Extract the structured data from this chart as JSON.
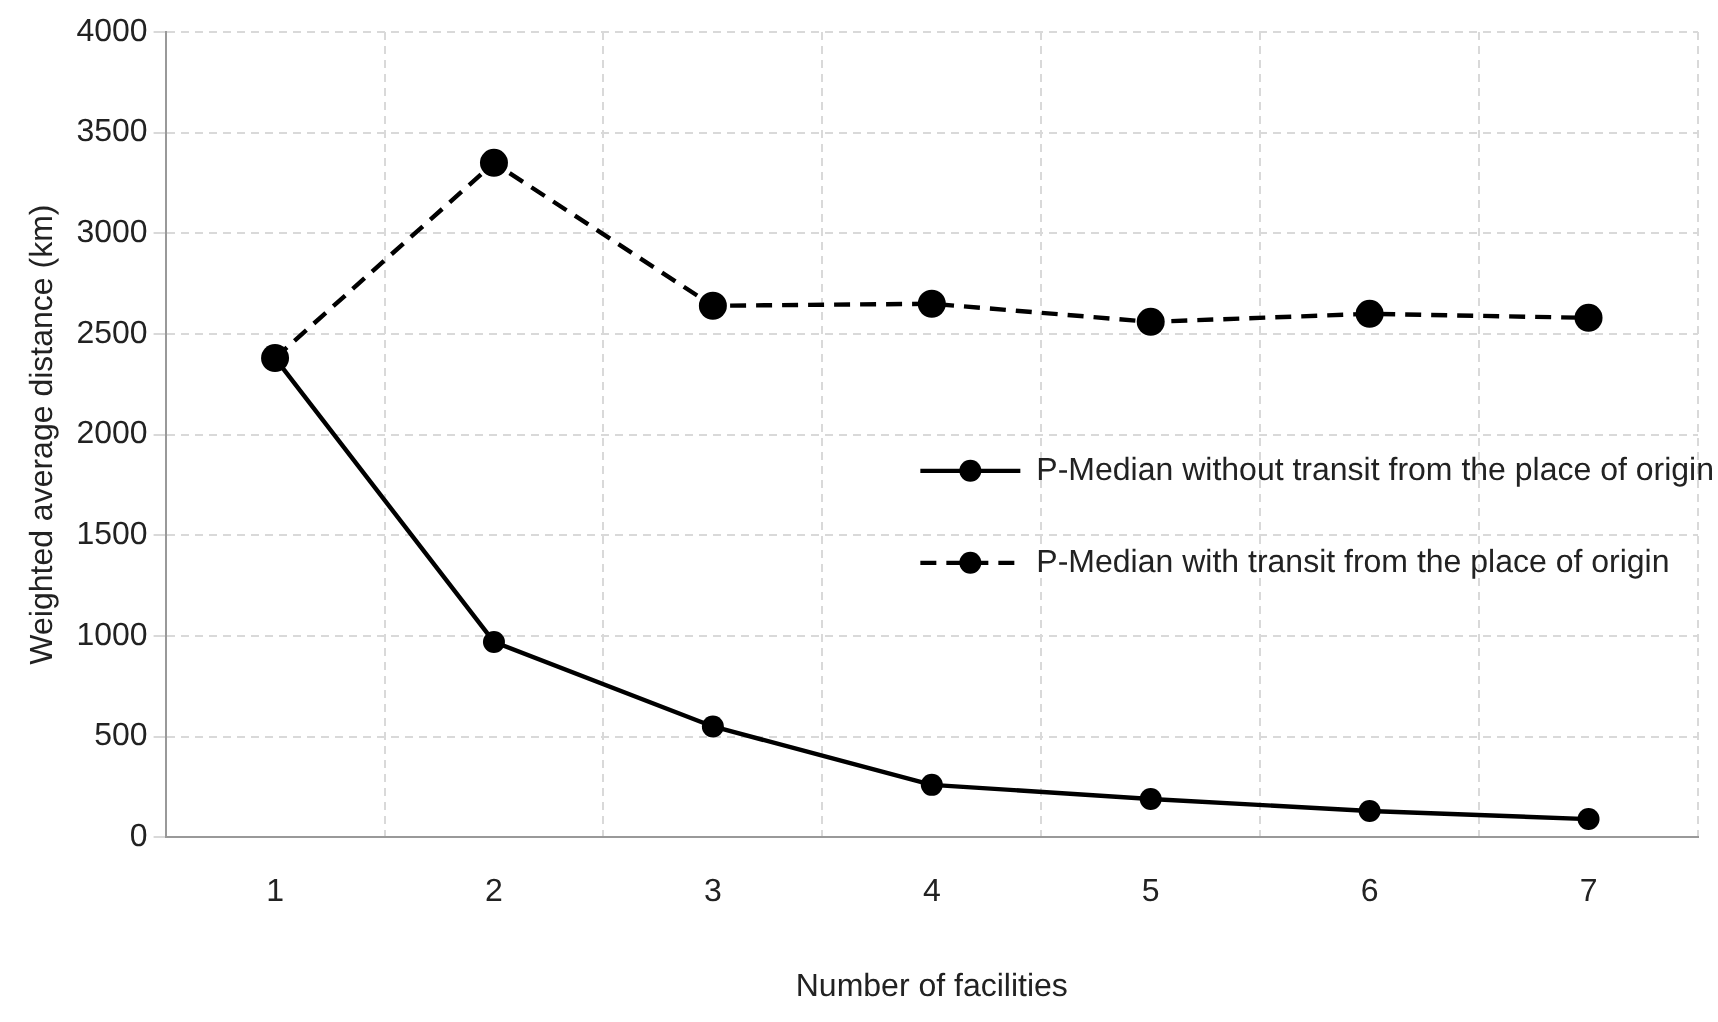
{
  "chart_data": {
    "type": "line",
    "xlabel": "Number of facilities",
    "ylabel": "Weighted average distance (km)",
    "categories": [
      "1",
      "2",
      "3",
      "4",
      "5",
      "6",
      "7"
    ],
    "series": [
      {
        "name": "P-Median without transit from the place of origin",
        "color": "#000000",
        "line_style": "solid",
        "values": [
          2380,
          970,
          550,
          260,
          190,
          130,
          90
        ]
      },
      {
        "name": "P-Median with transit from the place of origin",
        "color": "#000000",
        "line_style": "dashed",
        "values": [
          2380,
          3350,
          2640,
          2650,
          2560,
          2600,
          2580
        ]
      }
    ],
    "ylim": [
      0,
      4000
    ],
    "yticks": [
      0,
      500,
      1000,
      1500,
      2000,
      2500,
      3000,
      3500,
      4000
    ],
    "grid": true,
    "legend": "right",
    "marker": "circle"
  }
}
